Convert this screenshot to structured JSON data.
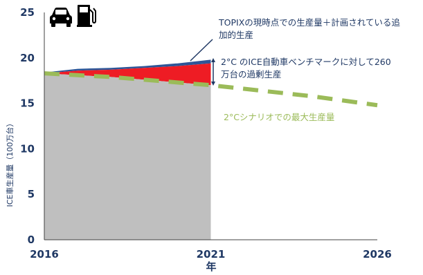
{
  "chart_data": {
    "type": "area",
    "xlabel": "年",
    "ylabel": "ICE車生産量（100万台）",
    "xlim": [
      2016,
      2026
    ],
    "ylim": [
      0,
      25
    ],
    "x_ticks": [
      "2016",
      "2021",
      "2026"
    ],
    "y_ticks": [
      "0",
      "5",
      "10",
      "15",
      "20",
      "25"
    ],
    "icons": [
      "car-icon",
      "fuel-pump-icon"
    ],
    "series": [
      {
        "name": "2°Cシナリオでの最大生産量",
        "style": "dashed-line",
        "color": "#9bbb59",
        "x": [
          2016,
          2017,
          2018,
          2019,
          2020,
          2021,
          2022,
          2023,
          2024,
          2025,
          2026
        ],
        "values": [
          18.3,
          18.1,
          17.9,
          17.6,
          17.3,
          17.0,
          16.6,
          16.2,
          15.8,
          15.3,
          14.8
        ]
      },
      {
        "name": "TOPIXの現時点での生産量＋計画されている追加的生産",
        "style": "area",
        "color": "#2e5597",
        "x": [
          2016,
          2017,
          2018,
          2019,
          2020,
          2021
        ],
        "values": [
          18.4,
          18.8,
          18.9,
          19.1,
          19.4,
          19.8
        ]
      }
    ],
    "fills": {
      "below_scenario": "#bfbfbf",
      "excess": "#ee1c24",
      "band": "#2e5597"
    },
    "excess_band_top": [
      18.3,
      18.6,
      18.7,
      18.9,
      19.1,
      19.4
    ],
    "annotations": {
      "topix_line1": "TOPIXの現時点での生産量＋計画されている追",
      "topix_line2": "加的生産",
      "excess_line1": "2°C のICE自動車ベンチマークに対して260",
      "excess_line2": "万台の過剰生産",
      "scenario": "2°Cシナリオでの最大生産量"
    }
  }
}
